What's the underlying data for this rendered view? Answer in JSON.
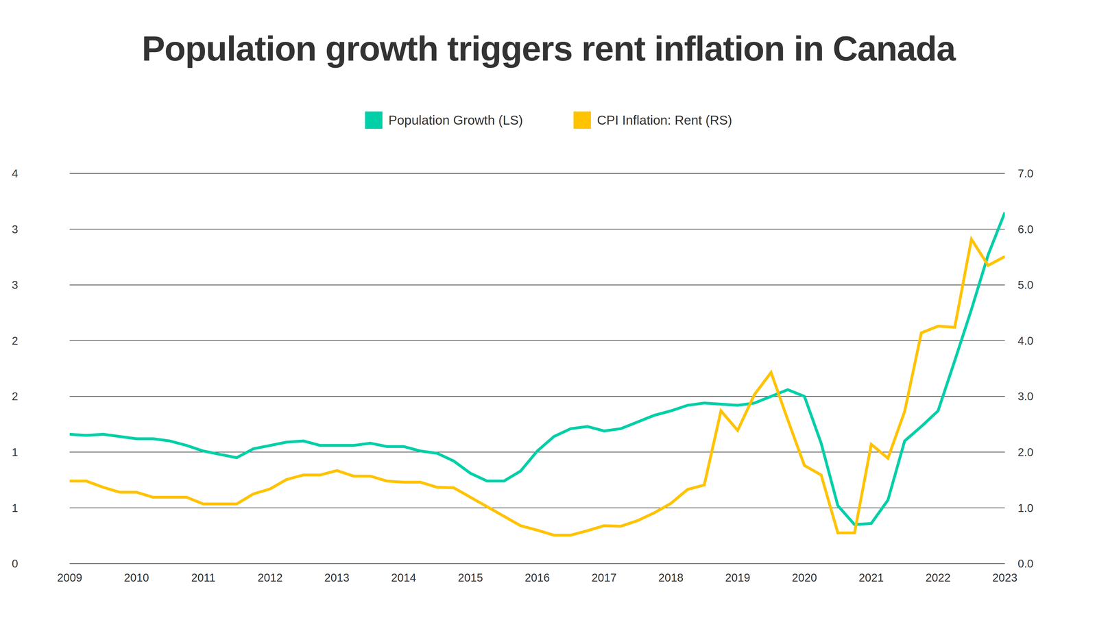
{
  "chart_data": {
    "type": "line",
    "title": "Population growth triggers rent inflation in Canada",
    "x": [
      2009,
      2009.25,
      2009.5,
      2009.75,
      2010,
      2010.25,
      2010.5,
      2010.75,
      2011,
      2011.25,
      2011.5,
      2011.75,
      2012,
      2012.25,
      2012.5,
      2012.75,
      2013,
      2013.25,
      2013.5,
      2013.75,
      2014,
      2014.25,
      2014.5,
      2014.75,
      2015,
      2015.25,
      2015.5,
      2015.75,
      2016,
      2016.25,
      2016.5,
      2016.75,
      2017,
      2017.25,
      2017.5,
      2017.75,
      2018,
      2018.25,
      2018.5,
      2018.75,
      2019,
      2019.25,
      2019.5,
      2019.75,
      2020,
      2020.25,
      2020.5,
      2020.75,
      2021,
      2021.25,
      2021.5,
      2021.75,
      2022,
      2022.25,
      2022.5,
      2022.75,
      2023
    ],
    "series": [
      {
        "name": "Population Growth (LS)",
        "color": "#00cfa8",
        "axis": "y",
        "values": [
          1.16,
          1.15,
          1.16,
          1.14,
          1.12,
          1.12,
          1.1,
          1.06,
          1.01,
          0.98,
          0.95,
          1.03,
          1.06,
          1.09,
          1.1,
          1.06,
          1.06,
          1.06,
          1.08,
          1.05,
          1.05,
          1.01,
          0.99,
          0.92,
          0.81,
          0.74,
          0.74,
          0.83,
          1.01,
          1.14,
          1.21,
          1.23,
          1.19,
          1.21,
          1.27,
          1.33,
          1.37,
          1.42,
          1.44,
          1.43,
          1.42,
          1.44,
          1.5,
          1.56,
          1.5,
          1.08,
          0.52,
          0.35,
          0.36,
          0.57,
          1.1,
          1.23,
          1.37,
          1.82,
          2.28,
          2.77,
          3.15
        ]
      },
      {
        "name": "CPI Inflation: Rent (RS)",
        "color": "#ffc300",
        "axis": "y2",
        "values": [
          1.48,
          1.48,
          1.37,
          1.28,
          1.28,
          1.19,
          1.19,
          1.19,
          1.07,
          1.07,
          1.07,
          1.25,
          1.34,
          1.51,
          1.59,
          1.59,
          1.67,
          1.57,
          1.57,
          1.48,
          1.46,
          1.46,
          1.37,
          1.36,
          1.19,
          1.02,
          0.85,
          0.68,
          0.6,
          0.51,
          0.51,
          0.59,
          0.68,
          0.67,
          0.77,
          0.91,
          1.08,
          1.33,
          1.41,
          2.74,
          2.39,
          3.03,
          3.43,
          2.58,
          1.76,
          1.59,
          0.55,
          0.55,
          2.14,
          1.89,
          2.73,
          4.14,
          4.26,
          4.24,
          5.82,
          5.35,
          5.51
        ]
      }
    ],
    "xlim": [
      2009,
      2023
    ],
    "xticks": [
      2009,
      2010,
      2011,
      2012,
      2013,
      2014,
      2015,
      2016,
      2017,
      2018,
      2019,
      2020,
      2021,
      2022,
      2023
    ],
    "ylim": [
      0,
      3.5
    ],
    "yticks": [
      0,
      {
        "value": 0.5,
        "label": "1"
      },
      1,
      {
        "value": 1.5,
        "label": "2"
      },
      2,
      {
        "value": 2.5,
        "label": "3"
      },
      3,
      {
        "value": 3.5,
        "label": "4"
      }
    ],
    "y2lim": [
      0,
      7
    ],
    "y2ticks": [
      {
        "value": 0,
        "label": "0.0"
      },
      {
        "value": 1,
        "label": "1.0"
      },
      {
        "value": 2,
        "label": "2.0"
      },
      {
        "value": 3,
        "label": "3.0"
      },
      {
        "value": 4,
        "label": "4.0"
      },
      {
        "value": 5,
        "label": "5.0"
      },
      {
        "value": 6,
        "label": "6.0"
      },
      {
        "value": 7,
        "label": "7.0"
      }
    ],
    "grid": true,
    "legend": "top"
  }
}
